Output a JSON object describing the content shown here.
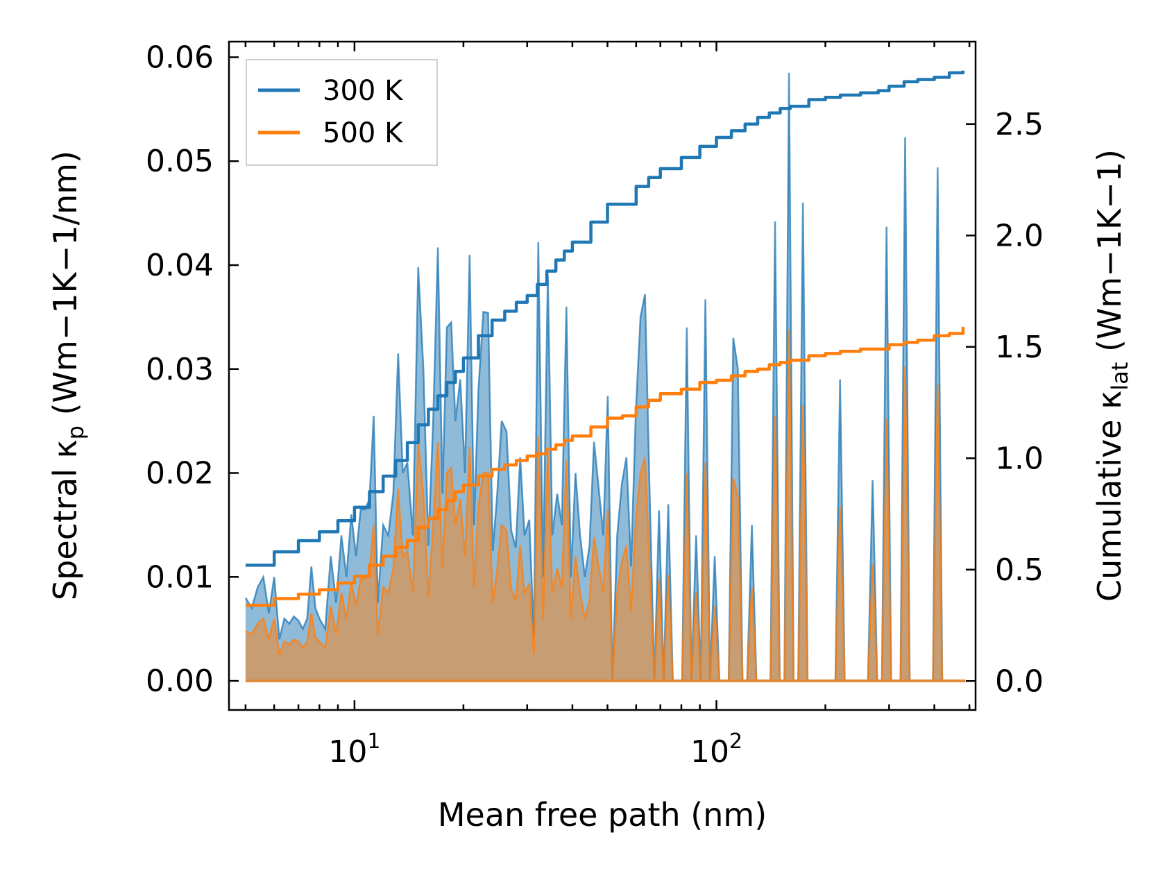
{
  "chart_data": {
    "type": "line",
    "title": "",
    "xlabel": "Mean free path (nm)",
    "ylabel_left": {
      "main": "Spectral κ",
      "sub": "p",
      "unit": " (Wm−1K−1/nm)"
    },
    "ylabel_right": {
      "main": "Cumulative κ",
      "sub": "lat",
      "unit": " (Wm−1K−1)"
    },
    "xscale": "log",
    "xlim": [
      4.5,
      520
    ],
    "ylim_left": [
      -0.0028,
      0.0615
    ],
    "ylim_right": [
      -0.13,
      2.87
    ],
    "xticks": [
      {
        "value": 10,
        "base": "10",
        "exp": "1"
      },
      {
        "value": 100,
        "base": "10",
        "exp": "2"
      }
    ],
    "yticks_left": [
      "0.00",
      "0.01",
      "0.02",
      "0.03",
      "0.04",
      "0.05",
      "0.06"
    ],
    "yticks_right": [
      "0.0",
      "0.5",
      "1.0",
      "1.5",
      "2.0",
      "2.5"
    ],
    "legend": {
      "position": "top-left",
      "entries": [
        "300 K",
        "500 K"
      ]
    },
    "colors": {
      "300 K": "#1f77b4",
      "500 K": "#ff7f0e",
      "fill_300": "#1f77b4",
      "fill_500": "#ff7f0e"
    },
    "spectral_x": [
      5.0,
      5.2,
      5.4,
      5.6,
      5.8,
      6.0,
      6.2,
      6.4,
      6.6,
      6.8,
      7.0,
      7.2,
      7.4,
      7.6,
      7.8,
      8.0,
      8.3,
      8.6,
      8.9,
      9.2,
      9.5,
      9.8,
      10.1,
      10.4,
      10.7,
      11.0,
      11.3,
      11.6,
      12.0,
      12.4,
      12.8,
      13.2,
      13.6,
      14.0,
      14.5,
      15.0,
      15.5,
      16.0,
      16.5,
      17.0,
      17.5,
      18.0,
      18.5,
      19.0,
      19.6,
      20.2,
      20.8,
      21.4,
      22.0,
      22.7,
      23.4,
      24.1,
      24.8,
      25.5,
      26.3,
      27.1,
      27.9,
      28.7,
      29.5,
      30.4,
      31.3,
      32.2,
      33.2,
      34.2,
      35.2,
      36.3,
      37.4,
      38.5,
      39.6,
      40.8,
      42.0,
      43.3,
      44.6,
      45.9,
      47.3,
      48.7,
      50.1,
      51.6,
      53.2,
      54.8,
      56.4,
      58.1,
      59.9,
      61.7,
      63.5,
      65.4,
      67.4,
      69.4,
      71.5,
      73.6,
      75.8,
      78.1,
      80.4,
      82.8,
      85.3,
      87.9,
      90.5,
      93.2,
      96.0,
      98.9,
      101.9,
      104.9,
      108.1,
      111.3,
      114.6,
      118.1,
      121.6,
      125.3,
      129.0,
      132.9,
      136.9,
      141.0,
      145.2,
      149.6,
      154.1,
      158.7,
      163.4,
      168.3,
      173.4,
      178.6,
      183.9,
      189.5,
      195.1,
      201.0,
      207.0,
      213.2,
      219.6,
      226.2,
      233.0,
      240.0,
      247.2,
      254.6,
      262.2,
      270.1,
      278.2,
      286.5,
      295.1,
      304.0,
      313.1,
      322.5,
      332.2,
      342.1,
      352.4,
      363.0,
      373.9,
      385.1,
      396.6,
      408.5,
      420.8,
      433.4,
      446.4,
      459.8,
      473.6,
      487.8
    ],
    "spectral_300": [
      0.008,
      0.007,
      0.009,
      0.01,
      0.0065,
      0.01,
      0.004,
      0.006,
      0.0055,
      0.0062,
      0.0058,
      0.005,
      0.006,
      0.011,
      0.007,
      0.006,
      0.005,
      0.012,
      0.0075,
      0.014,
      0.01,
      0.016,
      0.012,
      0.0165,
      0.0165,
      0.0175,
      0.0255,
      0.0075,
      0.015,
      0.014,
      0.018,
      0.0315,
      0.02,
      0.021,
      0.014,
      0.0398,
      0.03,
      0.013,
      0.025,
      0.0417,
      0.018,
      0.034,
      0.0345,
      0.025,
      0.029,
      0.02,
      0.041,
      0.015,
      0.028,
      0.0355,
      0.0354,
      0.0125,
      0.018,
      0.025,
      0.024,
      0.0145,
      0.0128,
      0.0215,
      0.014,
      0.0155,
      0.0042,
      0.0422,
      0.01,
      0.039,
      0.014,
      0.018,
      0.015,
      0.036,
      0.01,
      0.02,
      0.014,
      0.01,
      0.013,
      0.023,
      0.0185,
      0.014,
      0.0274,
      0.0,
      0.014,
      0.019,
      0.0215,
      0.011,
      0.026,
      0.035,
      0.0372,
      0.018,
      0.0,
      0.0164,
      0.0,
      0.017,
      0.0,
      0.0,
      0.0,
      0.034,
      0.0,
      0.014,
      0.0,
      0.0367,
      0.0,
      0.012,
      0.0,
      0.0,
      0.0,
      0.033,
      0.03,
      0.0,
      0.0,
      0.015,
      0.0,
      0.0,
      0.0,
      0.0,
      0.0442,
      0.0,
      0.0,
      0.0585,
      0.0,
      0.0,
      0.046,
      0.0,
      0.0,
      0.0,
      0.0,
      0.0,
      0.0,
      0.0,
      0.029,
      0.0,
      0.0,
      0.0,
      0.0,
      0.0,
      0.0,
      0.0193,
      0.0,
      0.0,
      0.0437,
      0.0,
      0.0,
      0.0,
      0.0523,
      0.0,
      0.0,
      0.0,
      0.0,
      0.0,
      0.0,
      0.0494,
      0.0
    ],
    "spectral_500": [
      0.0048,
      0.0045,
      0.0055,
      0.006,
      0.004,
      0.006,
      0.0025,
      0.0038,
      0.0035,
      0.004,
      0.0038,
      0.0032,
      0.0038,
      0.0065,
      0.0042,
      0.0038,
      0.0032,
      0.0072,
      0.0045,
      0.0085,
      0.006,
      0.0095,
      0.0072,
      0.0098,
      0.0098,
      0.0105,
      0.015,
      0.0045,
      0.009,
      0.0085,
      0.0108,
      0.0185,
      0.012,
      0.0125,
      0.0085,
      0.023,
      0.0178,
      0.008,
      0.015,
      0.023,
      0.0108,
      0.02,
      0.0205,
      0.015,
      0.0175,
      0.012,
      0.0225,
      0.009,
      0.0168,
      0.02,
      0.02,
      0.0075,
      0.0108,
      0.015,
      0.0145,
      0.0088,
      0.0078,
      0.013,
      0.0085,
      0.0093,
      0.0025,
      0.0235,
      0.006,
      0.022,
      0.0085,
      0.0108,
      0.009,
      0.0212,
      0.006,
      0.012,
      0.0085,
      0.006,
      0.0078,
      0.0138,
      0.011,
      0.0085,
      0.0165,
      0.0,
      0.0085,
      0.0115,
      0.013,
      0.0068,
      0.0155,
      0.02,
      0.0215,
      0.0108,
      0.0,
      0.0098,
      0.0,
      0.0102,
      0.0,
      0.0,
      0.0,
      0.02,
      0.0,
      0.0085,
      0.0,
      0.021,
      0.0,
      0.0072,
      0.0,
      0.0,
      0.0,
      0.0195,
      0.0178,
      0.0,
      0.0,
      0.009,
      0.0,
      0.0,
      0.0,
      0.0,
      0.0255,
      0.0,
      0.0,
      0.0338,
      0.0,
      0.0,
      0.0265,
      0.0,
      0.0,
      0.0,
      0.0,
      0.0,
      0.0,
      0.0,
      0.0168,
      0.0,
      0.0,
      0.0,
      0.0,
      0.0,
      0.0,
      0.0112,
      0.0,
      0.0,
      0.0252,
      0.0,
      0.0,
      0.0,
      0.0303,
      0.0,
      0.0,
      0.0,
      0.0,
      0.0,
      0.0,
      0.0285,
      0.0
    ],
    "cumulative_x": [
      5.0,
      6.0,
      7.0,
      8.0,
      9.0,
      10.0,
      11.0,
      12.0,
      13.0,
      14.0,
      15.0,
      16.0,
      17.0,
      18.0,
      19.0,
      20.0,
      22.0,
      24.0,
      26.0,
      28.0,
      30.0,
      32.0,
      34.0,
      36.0,
      38.0,
      40.0,
      45.0,
      50.0,
      55.0,
      60.0,
      65.0,
      70.0,
      80.0,
      90.0,
      100.0,
      110.0,
      120.0,
      130.0,
      140.0,
      150.0,
      160.0,
      180.0,
      200.0,
      220.0,
      250.0,
      280.0,
      300.0,
      330.0,
      360.0,
      400.0,
      440.0,
      480.0
    ],
    "cumulative_300": [
      0.52,
      0.58,
      0.63,
      0.67,
      0.72,
      0.78,
      0.85,
      0.92,
      0.99,
      1.07,
      1.15,
      1.22,
      1.28,
      1.34,
      1.39,
      1.45,
      1.55,
      1.62,
      1.66,
      1.7,
      1.73,
      1.78,
      1.84,
      1.89,
      1.93,
      1.97,
      2.06,
      2.14,
      2.14,
      2.22,
      2.26,
      2.3,
      2.35,
      2.4,
      2.44,
      2.47,
      2.5,
      2.53,
      2.55,
      2.57,
      2.58,
      2.61,
      2.62,
      2.63,
      2.64,
      2.65,
      2.67,
      2.69,
      2.7,
      2.71,
      2.73,
      2.74
    ],
    "cumulative_500": [
      0.34,
      0.37,
      0.39,
      0.41,
      0.44,
      0.47,
      0.52,
      0.56,
      0.6,
      0.63,
      0.69,
      0.73,
      0.77,
      0.81,
      0.85,
      0.88,
      0.92,
      0.95,
      0.97,
      0.99,
      1.01,
      1.02,
      1.04,
      1.06,
      1.08,
      1.1,
      1.14,
      1.18,
      1.19,
      1.23,
      1.26,
      1.29,
      1.31,
      1.34,
      1.35,
      1.37,
      1.39,
      1.4,
      1.42,
      1.43,
      1.44,
      1.46,
      1.47,
      1.48,
      1.49,
      1.49,
      1.51,
      1.52,
      1.53,
      1.55,
      1.56,
      1.59
    ]
  }
}
